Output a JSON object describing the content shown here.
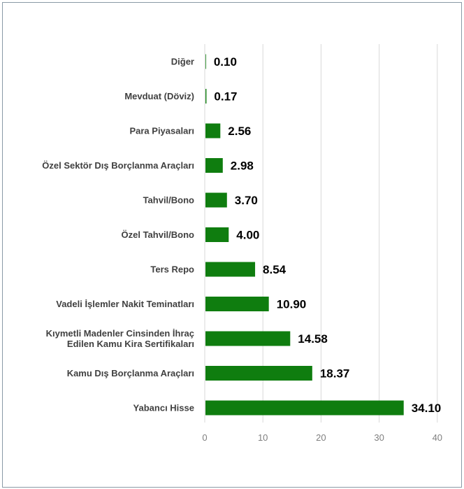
{
  "chart_data": {
    "type": "bar",
    "orientation": "horizontal",
    "categories": [
      "Diğer",
      "Mevduat (Döviz)",
      "Para Piyasaları",
      "Özel Sektör Dış Borçlanma Araçları",
      "Tahvil/Bono",
      "Özel Tahvil/Bono",
      "Ters Repo",
      "Vadeli İşlemler Nakit Teminatları",
      "Kıymetli Madenler Cinsinden İhraç\nEdilen Kamu Kira Sertifikaları",
      "Kamu Dış Borçlanma Araçları",
      "Yabancı Hisse"
    ],
    "values": [
      0.1,
      0.17,
      2.56,
      2.98,
      3.7,
      4.0,
      8.54,
      10.9,
      14.58,
      18.37,
      34.1
    ],
    "value_labels": [
      "0.10",
      "0.17",
      "2.56",
      "2.98",
      "3.70",
      "4.00",
      "8.54",
      "10.90",
      "14.58",
      "18.37",
      "34.10"
    ],
    "xlim": [
      0,
      40
    ],
    "xticks": [
      "0",
      "10",
      "20",
      "30",
      "40"
    ],
    "grid": "vertical",
    "legend": "none",
    "bar_color": "#0f7d0f",
    "title": "",
    "xlabel": "",
    "ylabel": ""
  }
}
